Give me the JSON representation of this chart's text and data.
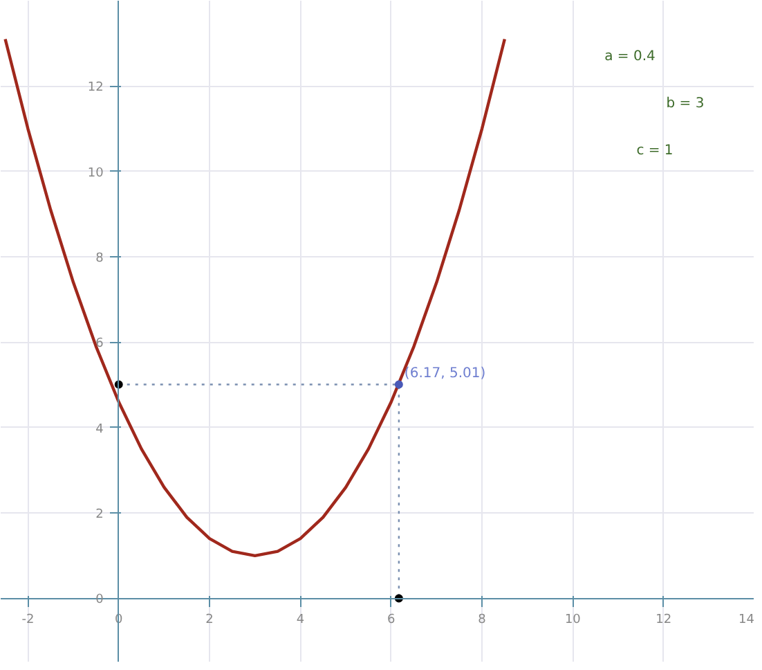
{
  "chart_data": {
    "type": "line",
    "xlim": [
      -2.6,
      14
    ],
    "ylim": [
      -1.5,
      14
    ],
    "xticks": [
      -2,
      0,
      2,
      4,
      6,
      8,
      10,
      12,
      14
    ],
    "yticks": [
      0,
      2,
      4,
      6,
      8,
      10,
      12
    ],
    "grid": true,
    "series": [
      {
        "color": "#a0281c",
        "line_style": "solid",
        "x": [
          -2.5,
          -2,
          -1.5,
          -1,
          -0.5,
          0,
          0.5,
          1,
          1.5,
          2,
          2.5,
          3,
          3.5,
          4,
          4.5,
          5,
          5.5,
          6,
          6.5,
          7,
          7.5,
          8,
          8.5
        ],
        "values": [
          13.1,
          11,
          9.1,
          7.4,
          5.9,
          4.6,
          3.5,
          2.6,
          1.9,
          1.4,
          1.1,
          1,
          1.1,
          1.4,
          1.9,
          2.6,
          3.5,
          4.6,
          5.9,
          7.4,
          9.1,
          11,
          13.1
        ]
      },
      {
        "type": "line",
        "color": "#7a8fb0",
        "line_style": "dotted",
        "x": [
          0,
          6.17,
          6.17
        ],
        "values": [
          5.01,
          5.01,
          0
        ]
      },
      {
        "type": "scatter",
        "color": "#000000",
        "marker": "circle",
        "x": [
          0,
          6.17
        ],
        "values": [
          5.01,
          0
        ]
      },
      {
        "type": "scatter",
        "color": "#4a5ab8",
        "marker": "circle",
        "x": [
          6.17
        ],
        "values": [
          5.01
        ]
      }
    ],
    "annotations": [
      {
        "text": "(6.17, 5.01)",
        "x": 6.17,
        "y": 5.01
      },
      "a = 0.4",
      "b = 3",
      "c = 1"
    ]
  }
}
